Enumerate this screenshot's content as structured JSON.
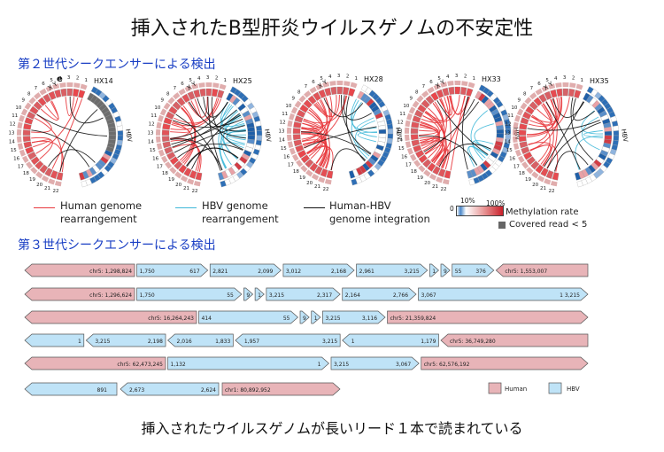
{
  "title": "挿入されたB型肝炎ウイルスゲノムの不安定性",
  "section2": "第２世代シークエンサーによる検出",
  "section3": "第３世代シークエンサーによる検出",
  "footer": "挿入されたウイルスゲノムが長いリード１本で読まれている",
  "panel_letter": "e",
  "circos": [
    {
      "sample": "HX14"
    },
    {
      "sample": "HX25"
    },
    {
      "sample": "HX28"
    },
    {
      "sample": "HX33"
    },
    {
      "sample": "HX35"
    }
  ],
  "circos_labels": {
    "hbv": "HBV",
    "xy": "X Y",
    "chrs": [
      "1",
      "2",
      "3",
      "4",
      "5",
      "6",
      "7",
      "8",
      "9",
      "10",
      "11",
      "12",
      "13",
      "14",
      "15",
      "16",
      "17",
      "18",
      "19",
      "20",
      "21",
      "22"
    ]
  },
  "legend": {
    "human_rearr_line1": "Human genome",
    "human_rearr_line2": "rearrangement",
    "hbv_rearr_line1": "HBV genome",
    "hbv_rearr_line2": "rearrangement",
    "integ_line1": "Human-HBV",
    "integ_line2": "genome integration",
    "scale_min": "0",
    "scale_10": "10%",
    "scale_max": "100%",
    "methylation": "Methylation rate",
    "covered": "Covered  read < 5",
    "colors": {
      "human_line": "#e8383d",
      "hbv_line": "#3fb8d8",
      "integ_line": "#111111"
    }
  },
  "read_legend": {
    "human": "Human",
    "hbv": "HBV",
    "colors": {
      "human": "#e8b4b8",
      "hbv": "#bfe3f7"
    }
  },
  "reads": [
    [
      {
        "type": "human",
        "dir": "left",
        "from": 0.0,
        "to": 0.195,
        "labels": {
          "right": "chr5: 1,298,824"
        }
      },
      {
        "type": "hbv",
        "dir": "right",
        "from": 0.199,
        "to": 0.325,
        "labels": {
          "left": "1,750",
          "right": "617"
        }
      },
      {
        "type": "hbv",
        "dir": "right",
        "from": 0.329,
        "to": 0.455,
        "labels": {
          "left": "2,821",
          "right": "2,099"
        }
      },
      {
        "type": "hbv",
        "dir": "right",
        "from": 0.459,
        "to": 0.585,
        "labels": {
          "left": "3,012",
          "right": "2,168"
        }
      },
      {
        "type": "hbv",
        "dir": "right",
        "from": 0.589,
        "to": 0.715,
        "labels": {
          "left": "2,961",
          "right": "3,215"
        }
      },
      {
        "type": "hbv",
        "dir": "right",
        "from": 0.719,
        "to": 0.735,
        "labels": {
          "left": "1"
        }
      },
      {
        "type": "hbv",
        "dir": "right",
        "from": 0.739,
        "to": 0.755,
        "labels": {
          "left": "9"
        }
      },
      {
        "type": "hbv",
        "dir": "right",
        "from": 0.759,
        "to": 0.833,
        "labels": {
          "left": "55",
          "right": "376"
        }
      },
      {
        "type": "human",
        "dir": "left",
        "from": 0.837,
        "to": 1.0,
        "labels": {
          "left": "chr5: 1,553,007"
        }
      }
    ],
    [
      {
        "type": "human",
        "dir": "left",
        "from": 0.0,
        "to": 0.195,
        "labels": {
          "right": "chr5: 1,296,624"
        }
      },
      {
        "type": "hbv",
        "dir": "right",
        "from": 0.199,
        "to": 0.385,
        "labels": {
          "left": "1,750",
          "right": "55"
        }
      },
      {
        "type": "hbv",
        "dir": "right",
        "from": 0.389,
        "to": 0.405,
        "labels": {
          "left": "9"
        }
      },
      {
        "type": "hbv",
        "dir": "right",
        "from": 0.409,
        "to": 0.425,
        "labels": {
          "left": "1"
        }
      },
      {
        "type": "hbv",
        "dir": "right",
        "from": 0.429,
        "to": 0.56,
        "labels": {
          "left": "3,215",
          "right": "2,317"
        }
      },
      {
        "type": "hbv",
        "dir": "right",
        "from": 0.564,
        "to": 0.695,
        "labels": {
          "left": "2,164",
          "right": "2,766"
        }
      },
      {
        "type": "hbv",
        "dir": "right",
        "from": 0.699,
        "to": 1.0,
        "labels": {
          "left": "3,067",
          "right": "3,215",
          "end": "1"
        }
      }
    ],
    [
      {
        "type": "human",
        "dir": "left",
        "from": 0.0,
        "to": 0.305,
        "labels": {
          "right": "chr5: 16,264,243"
        }
      },
      {
        "type": "hbv",
        "dir": "right",
        "from": 0.309,
        "to": 0.485,
        "labels": {
          "left": "414",
          "right": "55"
        }
      },
      {
        "type": "hbv",
        "dir": "right",
        "from": 0.489,
        "to": 0.505,
        "labels": {
          "left": "9"
        }
      },
      {
        "type": "hbv",
        "dir": "right",
        "from": 0.509,
        "to": 0.525,
        "labels": {
          "left": "1"
        }
      },
      {
        "type": "hbv",
        "dir": "right",
        "from": 0.529,
        "to": 0.64,
        "labels": {
          "left": "3,215",
          "right": "3,116"
        }
      },
      {
        "type": "human",
        "dir": "right",
        "from": 0.644,
        "to": 1.0,
        "labels": {
          "left": "chr5: 21,359,824"
        }
      }
    ],
    [
      {
        "type": "hbv",
        "dir": "left",
        "from": 0.0,
        "to": 0.105,
        "labels": {
          "right": "1"
        }
      },
      {
        "type": "hbv",
        "dir": "left",
        "from": 0.109,
        "to": 0.25,
        "labels": {
          "left": "3,215",
          "right": "2,198"
        }
      },
      {
        "type": "hbv",
        "dir": "left",
        "from": 0.254,
        "to": 0.37,
        "labels": {
          "left": "2,016",
          "right": "1,833"
        }
      },
      {
        "type": "hbv",
        "dir": "left",
        "from": 0.374,
        "to": 0.56,
        "labels": {
          "left": "1,957",
          "right": "3,215"
        }
      },
      {
        "type": "hbv",
        "dir": "left",
        "from": 0.564,
        "to": 0.735,
        "labels": {
          "left": "1",
          "right": "1,179"
        }
      },
      {
        "type": "human",
        "dir": "left",
        "from": 0.739,
        "to": 1.0,
        "labels": {
          "left": "chr5: 36,749,280"
        }
      }
    ],
    [
      {
        "type": "human",
        "dir": "left",
        "from": 0.0,
        "to": 0.25,
        "labels": {
          "right": "chr5: 62,473,245"
        }
      },
      {
        "type": "hbv",
        "dir": "right",
        "from": 0.254,
        "to": 0.54,
        "labels": {
          "left": "1,132",
          "right": "1"
        }
      },
      {
        "type": "hbv",
        "dir": "right",
        "from": 0.544,
        "to": 0.7,
        "labels": {
          "left": "3,215",
          "right": "3,067"
        }
      },
      {
        "type": "human",
        "dir": "right",
        "from": 0.704,
        "to": 1.0,
        "labels": {
          "left": "chr5: 62,576,192"
        }
      }
    ]
  ],
  "last_read": [
    {
      "type": "hbv",
      "dir": "left",
      "label_left": "",
      "label_right": "891"
    },
    {
      "type": "hbv",
      "dir": "left",
      "label_left": "2,673",
      "label_right": "2,624"
    },
    {
      "type": "human",
      "dir": "right",
      "label_left": "chr1: 80,892,952",
      "label_right": ""
    }
  ]
}
